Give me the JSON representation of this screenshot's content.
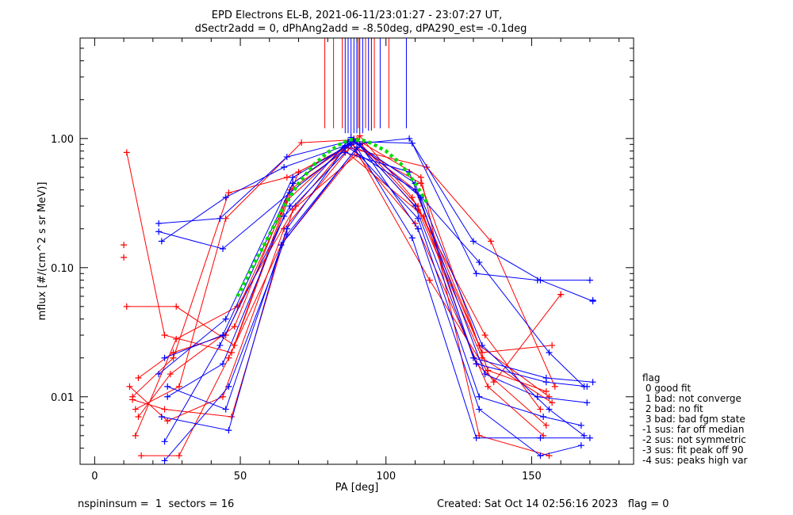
{
  "chart_data": {
    "type": "line",
    "title_line1": "EPD Electrons EL-B, 2021-06-11/23:01:27 - 23:07:27 UT,",
    "title_line2": "dSectr2add = 0, dPhAng2add = -8.50deg, dPA290_est=  -0.1deg",
    "xlabel": "PA [deg]",
    "ylabel": "mflux [#/(cm^2 s sr MeV)]",
    "xlim": [
      -5,
      185
    ],
    "ylim": [
      0.003,
      6
    ],
    "yscale": "log",
    "x_ticks": [
      0,
      50,
      100,
      150
    ],
    "x_tick_labels": [
      "0",
      "50",
      "100",
      "150"
    ],
    "y_ticks": [
      0.01,
      0.1,
      1.0
    ],
    "y_tick_labels": [
      "0.01",
      "0.10",
      "1.00"
    ],
    "footer_left": "nspininsum =  1  sectors = 16",
    "footer_right": "Created: Sat Oct 14 02:56:16 2023   flag = 0",
    "legend_title": "flag",
    "legend_entries": [
      " 0 good fit",
      " 1 bad: not converge",
      " 2 bad: no fit",
      " 3 bad: bad fgm state",
      "-1 sus: far off median",
      "-2 sus: not symmetric",
      "-3 sus: fit peak off 90",
      "-4 sus: peaks high var"
    ],
    "colors": {
      "red": "#ff0000",
      "blue": "#0000ff",
      "fit": "#00dd00",
      "axes": "#000000"
    },
    "series": [
      {
        "color": "red",
        "x": [
          11,
          24,
          47,
          68,
          89,
          110,
          132,
          156
        ],
        "y": [
          0.78,
          0.03,
          0.022,
          0.45,
          0.95,
          0.4,
          0.025,
          0.01
        ]
      },
      {
        "color": "red",
        "x": [
          11,
          28,
          48,
          70,
          88,
          112,
          135,
          155
        ],
        "y": [
          0.05,
          0.05,
          0.025,
          0.55,
          0.9,
          0.45,
          0.016,
          0.011
        ]
      },
      {
        "color": "red",
        "x": [
          13,
          27,
          46,
          66,
          87,
          114,
          136,
          158
        ],
        "y": [
          0.01,
          0.02,
          0.38,
          0.5,
          0.85,
          0.6,
          0.16,
          0.012
        ]
      },
      {
        "color": "red",
        "x": [
          14,
          29,
          45,
          71,
          90,
          111,
          133,
          157
        ],
        "y": [
          0.008,
          0.012,
          0.24,
          0.93,
          0.98,
          0.3,
          0.022,
          0.025
        ]
      },
      {
        "color": "red",
        "x": [
          15,
          26,
          48,
          67,
          86,
          113,
          131,
          155
        ],
        "y": [
          0.007,
          0.015,
          0.035,
          0.4,
          0.8,
          0.25,
          0.018,
          0.006
        ]
      },
      {
        "color": "red",
        "x": [
          12,
          25,
          44,
          65,
          91,
          109,
          134,
          153
        ],
        "y": [
          0.012,
          0.0065,
          0.01,
          0.2,
          1.05,
          0.35,
          0.03,
          0.008
        ]
      },
      {
        "color": "red",
        "x": [
          14,
          28,
          49,
          69,
          88,
          115,
          137,
          160
        ],
        "y": [
          0.005,
          0.028,
          0.05,
          0.3,
          0.95,
          0.08,
          0.013,
          0.062
        ]
      },
      {
        "color": "red",
        "x": [
          16,
          29,
          46,
          64,
          92,
          112,
          132,
          156
        ],
        "y": [
          0.0035,
          0.0035,
          0.02,
          0.15,
          0.92,
          0.5,
          0.005,
          0.0035
        ]
      },
      {
        "color": "red",
        "x": [
          13,
          24,
          47,
          68,
          90,
          110,
          135,
          154
        ],
        "y": [
          0.0095,
          0.008,
          0.007,
          0.28,
          0.75,
          0.22,
          0.012,
          0.005
        ]
      },
      {
        "color": "red",
        "x": [
          15,
          27,
          45,
          66,
          89,
          111,
          133,
          157
        ],
        "y": [
          0.014,
          0.022,
          0.03,
          0.33,
          1.0,
          0.28,
          0.02,
          0.009
        ]
      },
      {
        "color": "blue",
        "x": [
          22,
          43,
          66,
          87,
          109,
          131,
          152,
          170
        ],
        "y": [
          0.22,
          0.24,
          0.72,
          0.95,
          0.92,
          0.09,
          0.08,
          0.08
        ]
      },
      {
        "color": "blue",
        "x": [
          22,
          44,
          67,
          88,
          108,
          130,
          153,
          171
        ],
        "y": [
          0.19,
          0.14,
          0.38,
          0.9,
          1.0,
          0.16,
          0.08,
          0.055
        ]
      },
      {
        "color": "blue",
        "x": [
          23,
          45,
          65,
          86,
          110,
          132,
          156,
          168
        ],
        "y": [
          0.16,
          0.35,
          0.6,
          0.88,
          0.4,
          0.11,
          0.022,
          0.012
        ]
      },
      {
        "color": "blue",
        "x": [
          24,
          44,
          68,
          89,
          110,
          131,
          155,
          169
        ],
        "y": [
          0.02,
          0.03,
          0.45,
          0.98,
          0.3,
          0.018,
          0.013,
          0.012
        ]
      },
      {
        "color": "blue",
        "x": [
          25,
          45,
          66,
          87,
          111,
          132,
          154,
          167
        ],
        "y": [
          0.012,
          0.008,
          0.2,
          0.92,
          0.24,
          0.01,
          0.007,
          0.006
        ]
      },
      {
        "color": "blue",
        "x": [
          23,
          46,
          64,
          90,
          109,
          131,
          153,
          170
        ],
        "y": [
          0.007,
          0.0055,
          0.15,
          0.85,
          0.17,
          0.0048,
          0.0048,
          0.0048
        ]
      },
      {
        "color": "blue",
        "x": [
          24,
          43,
          67,
          88,
          112,
          133,
          156,
          168
        ],
        "y": [
          0.0045,
          0.025,
          0.3,
          1.02,
          0.35,
          0.025,
          0.008,
          0.005
        ]
      },
      {
        "color": "blue",
        "x": [
          25,
          44,
          65,
          86,
          108,
          134,
          152,
          169
        ],
        "y": [
          0.01,
          0.018,
          0.25,
          0.78,
          0.55,
          0.015,
          0.01,
          0.009
        ]
      },
      {
        "color": "blue",
        "x": [
          22,
          45,
          68,
          89,
          110,
          130,
          155,
          171
        ],
        "y": [
          0.015,
          0.04,
          0.5,
          0.94,
          0.45,
          0.02,
          0.014,
          0.013
        ]
      },
      {
        "color": "blue",
        "x": [
          24,
          46,
          66,
          91,
          111,
          132,
          153,
          167
        ],
        "y": [
          0.0032,
          0.012,
          0.18,
          0.9,
          0.2,
          0.008,
          0.0035,
          0.0042
        ]
      }
    ],
    "fit_curve": {
      "x": [
        49,
        55,
        60,
        65,
        70,
        75,
        80,
        85,
        88,
        92,
        95,
        100,
        105,
        110,
        114
      ],
      "y": [
        0.06,
        0.11,
        0.18,
        0.3,
        0.45,
        0.62,
        0.78,
        0.93,
        0.98,
        0.97,
        0.92,
        0.8,
        0.64,
        0.45,
        0.32
      ]
    },
    "isolated_points": [
      {
        "color": "red",
        "x": 10,
        "y": 0.15
      },
      {
        "color": "red",
        "x": 10,
        "y": 0.12
      },
      {
        "color": "blue",
        "x": 171,
        "y": 0.056
      },
      {
        "color": "red",
        "x": 160,
        "y": 0.062
      }
    ],
    "vertical_lines": [
      {
        "color": "red",
        "x": 79,
        "y_low": 1.2
      },
      {
        "color": "red",
        "x": 82,
        "y_low": 1.2
      },
      {
        "color": "red",
        "x": 85,
        "y_low": 1.2
      },
      {
        "color": "blue",
        "x": 86,
        "y_low": 1.1
      },
      {
        "color": "blue",
        "x": 87,
        "y_low": 1.1
      },
      {
        "color": "blue",
        "x": 88,
        "y_low": 1.05
      },
      {
        "color": "blue",
        "x": 89,
        "y_low": 1.1
      },
      {
        "color": "blue",
        "x": 90,
        "y_low": 1.1
      },
      {
        "color": "red",
        "x": 90.5,
        "y_low": 1.2
      },
      {
        "color": "blue",
        "x": 91,
        "y_low": 1.1
      },
      {
        "color": "blue",
        "x": 92,
        "y_low": 1.1
      },
      {
        "color": "red",
        "x": 93,
        "y_low": 1.2
      },
      {
        "color": "blue",
        "x": 94,
        "y_low": 1.15
      },
      {
        "color": "blue",
        "x": 95,
        "y_low": 1.15
      },
      {
        "color": "red",
        "x": 96,
        "y_low": 1.2
      },
      {
        "color": "blue",
        "x": 98,
        "y_low": 1.2
      },
      {
        "color": "red",
        "x": 101,
        "y_low": 1.2
      },
      {
        "color": "blue",
        "x": 107,
        "y_low": 1.2
      }
    ]
  }
}
